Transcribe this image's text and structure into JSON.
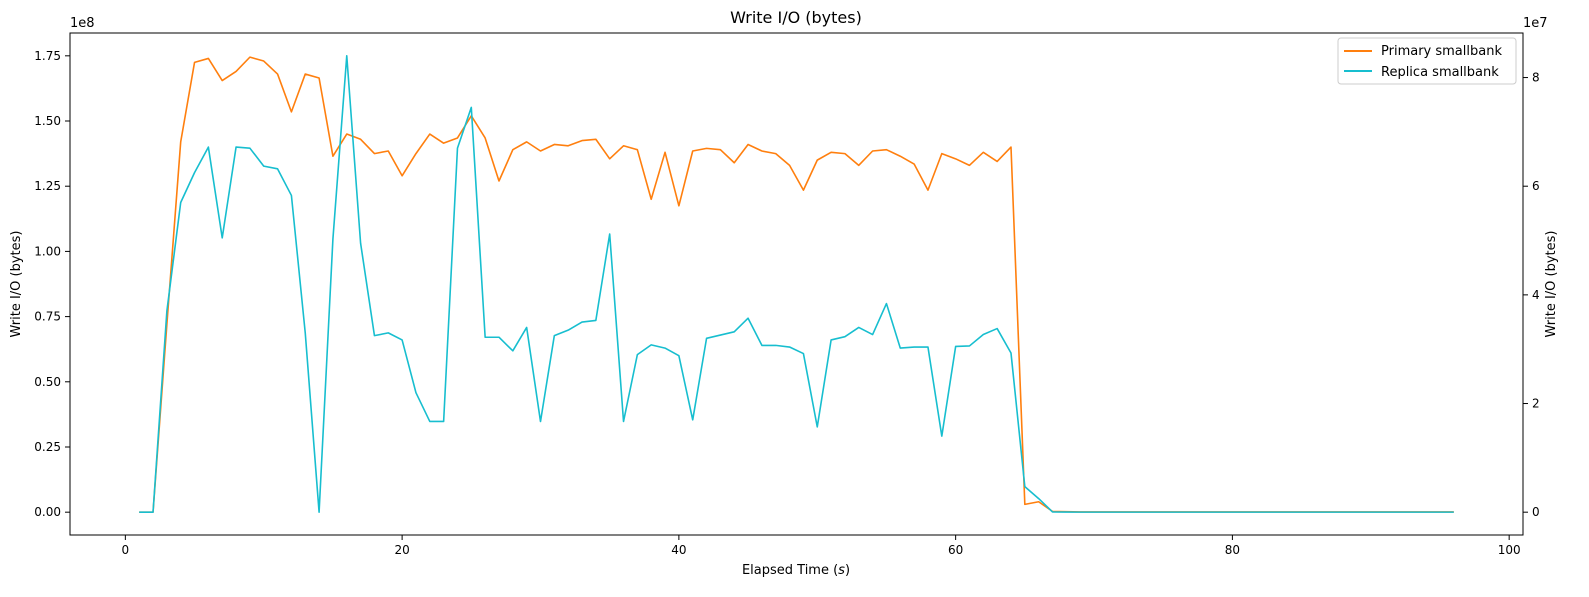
{
  "chart_data": {
    "type": "line",
    "title": "Write I/O (bytes)",
    "xlabel": "Elapsed Time (s)",
    "xlabel_main": "Elapsed Time (",
    "xlabel_unit": "s",
    "xlabel_end": ")",
    "ylabel_left": "Write I/O (bytes)",
    "ylabel_right": "Write I/O (bytes)",
    "left_offset_text": "1e8",
    "right_offset_text": "1e7",
    "xlim": [
      -4,
      101
    ],
    "ylim_left": [
      -0.0875,
      1.8375
    ],
    "ylim_right": [
      -0.42,
      8.82
    ],
    "x_ticks": [
      0,
      20,
      40,
      60,
      80,
      100
    ],
    "x_tick_labels": [
      "0",
      "20",
      "40",
      "60",
      "80",
      "100"
    ],
    "left_ticks": [
      0,
      0.25,
      0.5,
      0.75,
      1.0,
      1.25,
      1.5,
      1.75
    ],
    "left_tick_labels": [
      "0.00",
      "0.25",
      "0.50",
      "0.75",
      "1.00",
      "1.25",
      "1.50",
      "1.75"
    ],
    "right_ticks": [
      0,
      2,
      4,
      6,
      8
    ],
    "right_tick_labels": [
      "0",
      "2",
      "4",
      "6",
      "8"
    ],
    "grid": false,
    "legend_position": "top-right",
    "series": [
      {
        "name": "Primary smallbank",
        "color": "#ff7f0e",
        "axis": "left",
        "x": [
          1,
          2,
          3,
          4,
          5,
          6,
          7,
          8,
          9,
          10,
          11,
          12,
          13,
          14,
          15,
          16,
          17,
          18,
          19,
          20,
          21,
          22,
          23,
          24,
          25,
          26,
          27,
          28,
          29,
          30,
          31,
          32,
          33,
          34,
          35,
          36,
          37,
          38,
          39,
          40,
          41,
          42,
          43,
          44,
          45,
          46,
          47,
          48,
          49,
          50,
          51,
          52,
          53,
          54,
          55,
          56,
          57,
          58,
          59,
          60,
          61,
          62,
          63,
          64,
          65,
          66,
          67,
          68,
          69,
          70,
          71,
          72,
          73,
          74,
          75,
          76,
          77,
          78,
          79,
          80,
          81,
          82,
          83,
          84,
          85,
          86,
          87,
          88,
          89,
          90,
          91,
          92,
          93,
          94,
          95,
          96
        ],
        "y": [
          0,
          0,
          0.72,
          1.42,
          1.725,
          1.74,
          1.655,
          1.69,
          1.745,
          1.73,
          1.68,
          1.535,
          1.68,
          1.665,
          1.365,
          1.45,
          1.43,
          1.375,
          1.385,
          1.29,
          1.375,
          1.45,
          1.415,
          1.435,
          1.52,
          1.435,
          1.27,
          1.39,
          1.42,
          1.385,
          1.41,
          1.405,
          1.425,
          1.43,
          1.355,
          1.405,
          1.39,
          1.2,
          1.38,
          1.175,
          1.385,
          1.395,
          1.39,
          1.34,
          1.41,
          1.385,
          1.375,
          1.33,
          1.235,
          1.35,
          1.38,
          1.375,
          1.33,
          1.385,
          1.39,
          1.365,
          1.335,
          1.235,
          1.375,
          1.355,
          1.33,
          1.38,
          1.345,
          1.4,
          0.03,
          0.04,
          0.003,
          0.002,
          0.001,
          0.001,
          0.001,
          0.001,
          0.001,
          0.001,
          0.001,
          0.001,
          0.001,
          0.001,
          0.001,
          0.001,
          0.001,
          0.001,
          0.001,
          0.001,
          0.001,
          0.001,
          0.001,
          0.001,
          0.001,
          0.001,
          0.001,
          0.001,
          0.001,
          0.001,
          0.001,
          0.001
        ]
      },
      {
        "name": "Replica smallbank",
        "color": "#17becf",
        "axis": "right",
        "x": [
          1,
          2,
          3,
          4,
          5,
          6,
          7,
          8,
          9,
          10,
          11,
          12,
          13,
          14,
          15,
          16,
          17,
          18,
          19,
          20,
          21,
          22,
          23,
          24,
          25,
          26,
          27,
          28,
          29,
          30,
          31,
          32,
          33,
          34,
          35,
          36,
          37,
          38,
          39,
          40,
          41,
          42,
          43,
          44,
          45,
          46,
          47,
          48,
          49,
          50,
          51,
          52,
          53,
          54,
          55,
          56,
          57,
          58,
          59,
          60,
          61,
          62,
          63,
          64,
          65,
          66,
          67,
          68,
          69,
          70,
          71,
          72,
          73,
          74,
          75,
          76,
          77,
          78,
          79,
          80,
          81,
          82,
          83,
          84,
          85,
          86,
          87,
          88,
          89,
          90,
          91,
          92,
          93,
          94,
          95,
          96
        ],
        "y": [
          0,
          0,
          3.7,
          5.7,
          6.25,
          6.72,
          5.05,
          6.72,
          6.7,
          6.37,
          6.32,
          5.83,
          3.3,
          0,
          5.03,
          8.4,
          4.95,
          3.25,
          3.3,
          3.17,
          2.2,
          1.67,
          1.67,
          6.7,
          7.45,
          3.22,
          3.22,
          2.97,
          3.4,
          1.67,
          3.25,
          3.35,
          3.5,
          3.53,
          5.12,
          1.67,
          2.9,
          3.08,
          3.02,
          2.88,
          1.7,
          3.2,
          3.26,
          3.32,
          3.57,
          3.07,
          3.07,
          3.04,
          2.92,
          1.57,
          3.17,
          3.23,
          3.4,
          3.27,
          3.84,
          3.02,
          3.04,
          3.04,
          1.4,
          3.05,
          3.06,
          3.27,
          3.38,
          2.93,
          0.47,
          0.25,
          0.005,
          0.002,
          0.001,
          0.001,
          0.001,
          0.001,
          0.001,
          0.001,
          0.001,
          0.001,
          0.001,
          0.001,
          0.001,
          0.001,
          0.001,
          0.001,
          0.001,
          0.001,
          0.001,
          0.001,
          0.001,
          0.001,
          0.001,
          0.001,
          0.001,
          0.001,
          0.001,
          0.001,
          0.001,
          0.001
        ]
      }
    ]
  }
}
